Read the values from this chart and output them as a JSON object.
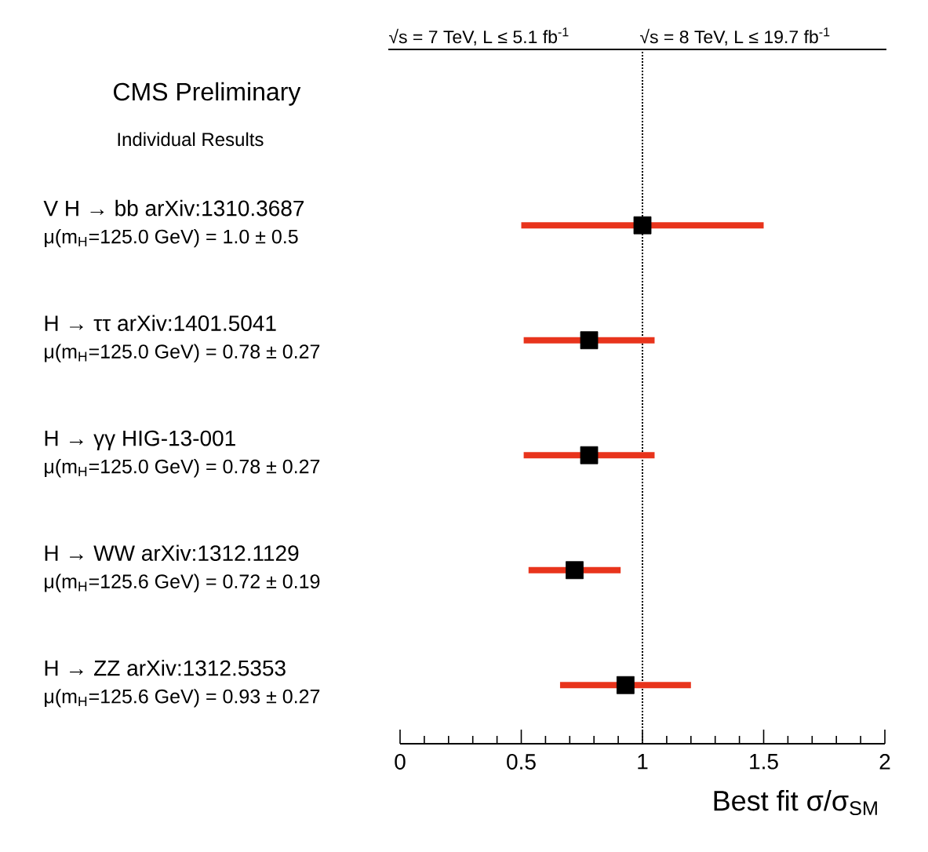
{
  "chart_data": {
    "type": "scatter",
    "orientation": "horizontal",
    "title": "CMS Preliminary",
    "subtitle": "Individual Results",
    "xlabel": "Best fit σ/σ$_{SM}$",
    "annotations": [
      "√s = 7 TeV, L ≤ 5.1 fb$^{-1}$",
      "√s = 8 TeV, L ≤ 19.7 fb$^{-1}$",
      "μ(m$_{H}$=125.0 GeV) = 1.0 ± 0.5",
      "μ(m$_{H}$=125.0 GeV) = 0.78 ± 0.27",
      "μ(m$_{H}$=125.0 GeV) = 0.78 ± 0.27",
      "μ(m$_{H}$=125.6 GeV) = 0.72 ± 0.19",
      "μ(m$_{H}$=125.6 GeV) = 0.93 ± 0.27"
    ],
    "categories": [
      "V H → bb  arXiv:1310.3687",
      "H → ττ  arXiv:1401.5041",
      "H → γγ  HIG-13-001",
      "H → WW  arXiv:1312.1129",
      "H → ZZ  arXiv:1312.5353"
    ],
    "series": [
      {
        "color": "#000000",
        "values": [
          1.0,
          0.78,
          0.78,
          0.72,
          0.93
        ],
        "errors": [
          0.5,
          0.27,
          0.27,
          0.19,
          0.27
        ]
      }
    ],
    "xlim": [
      0,
      2
    ],
    "xticks": [
      0,
      0.5,
      1,
      1.5,
      2
    ],
    "ref_lines": [
      {
        "axis": "x",
        "value": 1,
        "line_style": "dotted"
      }
    ],
    "marker": "square"
  }
}
